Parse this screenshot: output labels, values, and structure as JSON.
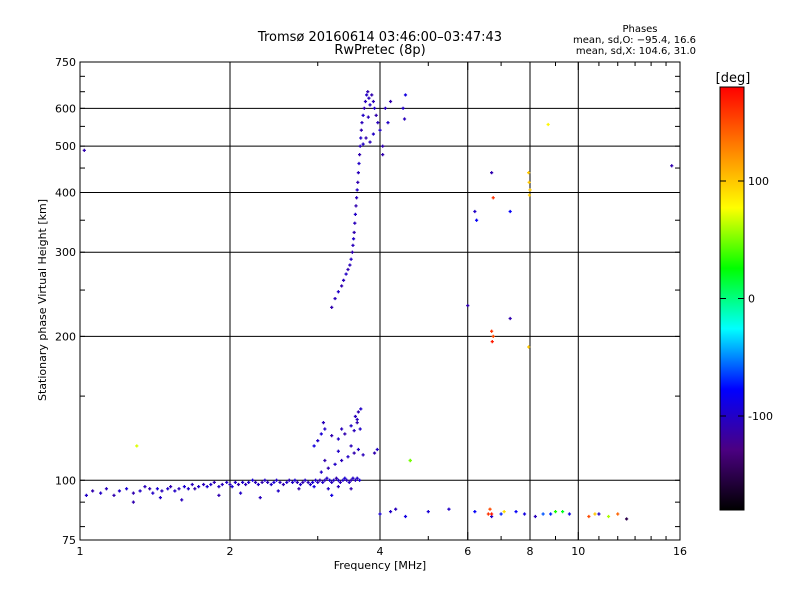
{
  "chart_data": {
    "type": "scatter",
    "title": "Tromsø 20160614 03:46:00–03:47:43",
    "subtitle": "RwPretec (8p)",
    "xlabel": "Frequency [MHz]",
    "ylabel": "Stationary phase Virtual Height [km]",
    "x_scale": "log",
    "y_scale": "log",
    "xlim": [
      1,
      16
    ],
    "ylim": [
      75,
      750
    ],
    "x_ticks": [
      {
        "value": 1,
        "label": "1"
      },
      {
        "value": 2,
        "label": "2"
      },
      {
        "value": 4,
        "label": "4"
      },
      {
        "value": 6,
        "label": "6"
      },
      {
        "value": 8,
        "label": "8"
      },
      {
        "value": 10,
        "label": "10"
      },
      {
        "value": 16,
        "label": "16"
      }
    ],
    "y_ticks": [
      {
        "value": 75,
        "label": "75"
      },
      {
        "value": 100,
        "label": "100"
      },
      {
        "value": 200,
        "label": "200"
      },
      {
        "value": 300,
        "label": "300"
      },
      {
        "value": 400,
        "label": "400"
      },
      {
        "value": 500,
        "label": "500"
      },
      {
        "value": 600,
        "label": "600"
      },
      {
        "value": 750,
        "label": "750"
      }
    ],
    "grid": true,
    "stats": {
      "heading": "Phases",
      "line1": "mean, sd,O: −95.4, 16.6",
      "line2": "mean, sd,X: 104.6, 31.0"
    },
    "colorbar": {
      "label": "[deg]",
      "range": [
        -180,
        180
      ],
      "ticks": [
        {
          "value": 100,
          "label": "100"
        },
        {
          "value": 0,
          "label": "0"
        },
        {
          "value": -100,
          "label": "-100"
        }
      ],
      "colors": [
        "#000000",
        "#4b0082",
        "#0000ff",
        "#00ffff",
        "#00ff00",
        "#ffff00",
        "#ff8000",
        "#ff0000"
      ]
    },
    "points": [
      [
        1.03,
        93,
        -100
      ],
      [
        1.06,
        95,
        -110
      ],
      [
        1.1,
        94,
        -100
      ],
      [
        1.13,
        96,
        -105
      ],
      [
        1.17,
        93,
        -110
      ],
      [
        1.2,
        95,
        -100
      ],
      [
        1.24,
        96,
        -95
      ],
      [
        1.28,
        94,
        -110
      ],
      [
        1.32,
        95,
        -100
      ],
      [
        1.35,
        97,
        -105
      ],
      [
        1.38,
        96,
        -110
      ],
      [
        1.4,
        94,
        -100
      ],
      [
        1.43,
        96,
        -95
      ],
      [
        1.46,
        95,
        -105
      ],
      [
        1.5,
        96,
        -100
      ],
      [
        1.52,
        97,
        -110
      ],
      [
        1.55,
        95,
        -100
      ],
      [
        1.58,
        96,
        -105
      ],
      [
        1.62,
        97,
        -95
      ],
      [
        1.65,
        96,
        -100
      ],
      [
        1.68,
        98,
        -105
      ],
      [
        1.7,
        96,
        -110
      ],
      [
        1.73,
        97,
        -100
      ],
      [
        1.77,
        98,
        -105
      ],
      [
        1.8,
        97,
        -95
      ],
      [
        1.83,
        98,
        -100
      ],
      [
        1.86,
        99,
        -110
      ],
      [
        1.9,
        97,
        -100
      ],
      [
        1.93,
        98,
        -105
      ],
      [
        1.97,
        99,
        -100
      ],
      [
        2.0,
        98,
        -105
      ],
      [
        2.02,
        97,
        -95
      ],
      [
        2.05,
        99,
        -100
      ],
      [
        2.08,
        98,
        -110
      ],
      [
        2.12,
        99,
        -100
      ],
      [
        2.15,
        98,
        -105
      ],
      [
        2.18,
        99,
        -100
      ],
      [
        2.22,
        100,
        -95
      ],
      [
        2.25,
        99,
        -105
      ],
      [
        2.28,
        98,
        -100
      ],
      [
        2.32,
        99,
        -110
      ],
      [
        2.35,
        100,
        -100
      ],
      [
        2.38,
        99,
        -105
      ],
      [
        2.42,
        98,
        -100
      ],
      [
        2.45,
        99,
        -95
      ],
      [
        2.48,
        100,
        -100
      ],
      [
        2.52,
        99,
        -105
      ],
      [
        2.56,
        98,
        -110
      ],
      [
        2.6,
        99,
        -100
      ],
      [
        2.63,
        100,
        -105
      ],
      [
        2.67,
        99,
        -100
      ],
      [
        2.7,
        100,
        -95
      ],
      [
        2.73,
        99,
        -105
      ],
      [
        2.77,
        98,
        -100
      ],
      [
        2.8,
        99,
        -110
      ],
      [
        2.83,
        100,
        -100
      ],
      [
        2.87,
        99,
        -105
      ],
      [
        2.9,
        98,
        -100
      ],
      [
        2.93,
        99,
        -95
      ],
      [
        2.97,
        100,
        -100
      ],
      [
        3.0,
        99,
        -105
      ],
      [
        3.03,
        100,
        -110
      ],
      [
        3.07,
        99,
        -100
      ],
      [
        3.1,
        100,
        -105
      ],
      [
        3.13,
        101,
        -100
      ],
      [
        3.17,
        100,
        -95
      ],
      [
        3.2,
        99,
        -105
      ],
      [
        3.23,
        100,
        -100
      ],
      [
        3.27,
        101,
        -110
      ],
      [
        3.3,
        100,
        -100
      ],
      [
        3.33,
        99,
        -105
      ],
      [
        3.37,
        100,
        -100
      ],
      [
        3.4,
        101,
        -95
      ],
      [
        3.43,
        100,
        -105
      ],
      [
        3.47,
        99,
        -100
      ],
      [
        3.5,
        100,
        -110
      ],
      [
        3.53,
        101,
        -100
      ],
      [
        3.57,
        100,
        -105
      ],
      [
        3.6,
        101,
        -100
      ],
      [
        3.64,
        100,
        -95
      ],
      [
        1.28,
        90,
        -110
      ],
      [
        1.45,
        92,
        -100
      ],
      [
        1.6,
        91,
        -105
      ],
      [
        1.9,
        93,
        -110
      ],
      [
        2.1,
        94,
        -100
      ],
      [
        2.3,
        92,
        -105
      ],
      [
        2.5,
        95,
        -100
      ],
      [
        2.75,
        96,
        -110
      ],
      [
        2.95,
        97,
        -90
      ],
      [
        3.15,
        96,
        -100
      ],
      [
        3.3,
        97,
        -105
      ],
      [
        3.5,
        96,
        -110
      ],
      [
        3.05,
        104,
        -100
      ],
      [
        3.15,
        106,
        -110
      ],
      [
        3.25,
        108,
        -100
      ],
      [
        3.35,
        110,
        -105
      ],
      [
        3.45,
        112,
        -100
      ],
      [
        3.55,
        114,
        -110
      ],
      [
        3.62,
        116,
        -100
      ],
      [
        3.7,
        113,
        -105
      ],
      [
        3.1,
        110,
        -110
      ],
      [
        3.3,
        115,
        -100
      ],
      [
        3.5,
        118,
        -105
      ],
      [
        2.95,
        118,
        -90
      ],
      [
        3.0,
        121,
        -100
      ],
      [
        3.05,
        125,
        -95
      ],
      [
        3.1,
        128,
        -100
      ],
      [
        3.08,
        132,
        -105
      ],
      [
        3.2,
        124,
        -110
      ],
      [
        3.3,
        122,
        -100
      ],
      [
        3.35,
        128,
        -105
      ],
      [
        3.4,
        125,
        -110
      ],
      [
        3.5,
        130,
        -100
      ],
      [
        3.55,
        127,
        -105
      ],
      [
        3.6,
        132,
        -110
      ],
      [
        3.65,
        128,
        -100
      ],
      [
        3.57,
        136,
        -105
      ],
      [
        3.62,
        139,
        -110
      ],
      [
        3.66,
        141,
        -100
      ],
      [
        3.6,
        134,
        -105
      ],
      [
        3.9,
        114,
        -110
      ],
      [
        3.95,
        116,
        -100
      ],
      [
        4.6,
        110,
        40
      ],
      [
        3.2,
        230,
        -110
      ],
      [
        3.25,
        240,
        -105
      ],
      [
        3.3,
        248,
        -100
      ],
      [
        3.35,
        255,
        -110
      ],
      [
        3.38,
        262,
        -105
      ],
      [
        3.42,
        270,
        -100
      ],
      [
        3.45,
        276,
        -110
      ],
      [
        3.48,
        282,
        -105
      ],
      [
        3.5,
        290,
        -100
      ],
      [
        3.52,
        300,
        -110
      ],
      [
        3.53,
        310,
        -105
      ],
      [
        3.54,
        320,
        -100
      ],
      [
        3.55,
        330,
        -110
      ],
      [
        3.56,
        345,
        -105
      ],
      [
        3.57,
        360,
        -100
      ],
      [
        3.58,
        375,
        -110
      ],
      [
        3.59,
        390,
        -105
      ],
      [
        3.6,
        405,
        -100
      ],
      [
        3.61,
        420,
        -110
      ],
      [
        3.62,
        440,
        -105
      ],
      [
        3.63,
        460,
        -100
      ],
      [
        3.64,
        480,
        -110
      ],
      [
        3.65,
        500,
        -105
      ],
      [
        3.66,
        520,
        -100
      ],
      [
        3.67,
        540,
        -110
      ],
      [
        3.68,
        560,
        -105
      ],
      [
        3.7,
        580,
        -100
      ],
      [
        3.72,
        600,
        -110
      ],
      [
        3.74,
        620,
        -105
      ],
      [
        3.76,
        640,
        -100
      ],
      [
        3.78,
        650,
        -110
      ],
      [
        3.8,
        630,
        -105
      ],
      [
        3.82,
        610,
        -100
      ],
      [
        3.85,
        640,
        -110
      ],
      [
        3.88,
        620,
        -105
      ],
      [
        3.9,
        600,
        -100
      ],
      [
        3.93,
        580,
        -110
      ],
      [
        3.96,
        560,
        -105
      ],
      [
        4.0,
        540,
        -100
      ],
      [
        4.05,
        500,
        -110
      ],
      [
        4.1,
        600,
        -105
      ],
      [
        4.15,
        560,
        -100
      ],
      [
        4.2,
        620,
        -110
      ],
      [
        4.45,
        600,
        -100
      ],
      [
        4.5,
        640,
        -90
      ],
      [
        4.48,
        570,
        -105
      ],
      [
        3.75,
        520,
        -110
      ],
      [
        3.82,
        510,
        -105
      ],
      [
        3.7,
        505,
        -100
      ],
      [
        4.05,
        480,
        -110
      ],
      [
        3.88,
        530,
        -100
      ],
      [
        3.79,
        575,
        -105
      ],
      [
        1.02,
        490,
        -110
      ],
      [
        15.4,
        455,
        -110
      ],
      [
        4.0,
        85,
        -95
      ],
      [
        4.2,
        86,
        -100
      ],
      [
        4.3,
        87,
        -105
      ],
      [
        4.5,
        84,
        -90
      ],
      [
        5.0,
        86,
        -95
      ],
      [
        5.5,
        87,
        -100
      ],
      [
        6.2,
        86,
        -80
      ],
      [
        6.6,
        85,
        160
      ],
      [
        6.7,
        84,
        -100
      ],
      [
        7.0,
        85,
        -70
      ],
      [
        7.5,
        86,
        -80
      ],
      [
        7.8,
        85,
        -90
      ],
      [
        8.2,
        84,
        -105
      ],
      [
        8.5,
        85,
        -60
      ],
      [
        8.8,
        85,
        -70
      ],
      [
        9.0,
        86,
        30
      ],
      [
        9.3,
        86,
        20
      ],
      [
        9.6,
        85,
        -90
      ],
      [
        10.5,
        84,
        150
      ],
      [
        10.8,
        85,
        100
      ],
      [
        11.0,
        85,
        -100
      ],
      [
        11.5,
        84,
        60
      ],
      [
        12.0,
        85,
        140
      ],
      [
        12.5,
        83,
        -150
      ],
      [
        6.65,
        87,
        150
      ],
      [
        6.7,
        85,
        170
      ],
      [
        7.1,
        86,
        90
      ],
      [
        6.2,
        365,
        -100
      ],
      [
        6.25,
        350,
        -80
      ],
      [
        6.7,
        440,
        -110
      ],
      [
        6.75,
        390,
        160
      ],
      [
        7.3,
        365,
        -80
      ],
      [
        7.95,
        440,
        100
      ],
      [
        7.97,
        420,
        100
      ],
      [
        8.0,
        405,
        100
      ],
      [
        7.98,
        395,
        100
      ],
      [
        8.7,
        555,
        80
      ],
      [
        6.0,
        232,
        -110
      ],
      [
        6.7,
        205,
        160
      ],
      [
        6.75,
        200,
        150
      ],
      [
        6.72,
        195,
        170
      ],
      [
        7.3,
        218,
        -110
      ],
      [
        7.95,
        190,
        100
      ],
      [
        1.3,
        118,
        70
      ],
      [
        4.6,
        110,
        50
      ],
      [
        3.2,
        93,
        -90
      ]
    ]
  }
}
